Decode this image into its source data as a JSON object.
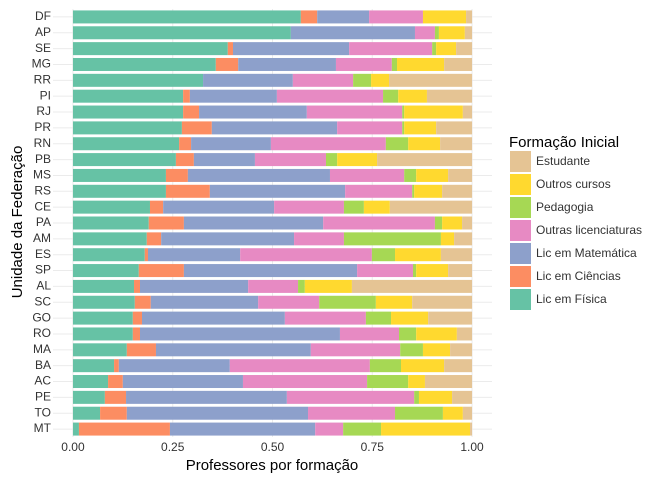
{
  "chart_data": {
    "type": "stacked-bar-horizontal",
    "x_label": "Professores por formação",
    "y_label": "Unidade da Federação",
    "legend_title": "Formação Inicial",
    "legend_position": "right",
    "grid": true,
    "xlim": [
      -0.05,
      1.05
    ],
    "xticks": [
      {
        "value": 0,
        "label": "0.00"
      },
      {
        "value": 0.25,
        "label": "0.25"
      },
      {
        "value": 0.5,
        "label": "0.50"
      },
      {
        "value": 0.75,
        "label": "0.75"
      },
      {
        "value": 1,
        "label": "1.00"
      }
    ],
    "categories": [
      "DF",
      "AP",
      "SE",
      "MG",
      "RR",
      "PI",
      "RJ",
      "PR",
      "RN",
      "PB",
      "MS",
      "RS",
      "CE",
      "PA",
      "AM",
      "ES",
      "SP",
      "AL",
      "SC",
      "GO",
      "RO",
      "MA",
      "BA",
      "AC",
      "PE",
      "TO",
      "MT"
    ],
    "series": [
      {
        "name": "Estudante",
        "color": "#e5c494",
        "values": [
          0.015,
          0.018,
          0.04,
          0.07,
          0.208,
          0.113,
          0.023,
          0.09,
          0.08,
          0.238,
          0.06,
          0.075,
          0.206,
          0.025,
          0.045,
          0.078,
          0.06,
          0.301,
          0.15,
          0.11,
          0.038,
          0.055,
          0.07,
          0.118,
          0.05,
          0.023,
          0.005
        ]
      },
      {
        "name": "Outros cursos",
        "color": "#ffd92f",
        "values": [
          0.108,
          0.065,
          0.05,
          0.118,
          0.045,
          0.072,
          0.147,
          0.08,
          0.08,
          0.1,
          0.08,
          0.07,
          0.065,
          0.05,
          0.033,
          0.115,
          0.08,
          0.118,
          0.091,
          0.093,
          0.102,
          0.068,
          0.108,
          0.042,
          0.083,
          0.05,
          0.223
        ]
      },
      {
        "name": "Pedagogia",
        "color": "#a6d854",
        "values": [
          0.0,
          0.01,
          0.01,
          0.013,
          0.045,
          0.038,
          0.005,
          0.005,
          0.056,
          0.028,
          0.03,
          0.005,
          0.05,
          0.018,
          0.243,
          0.058,
          0.008,
          0.017,
          0.142,
          0.063,
          0.043,
          0.057,
          0.078,
          0.103,
          0.012,
          0.12,
          0.095
        ]
      },
      {
        "name": "Outras licenciaturas",
        "color": "#e78ac3",
        "values": [
          0.135,
          0.05,
          0.208,
          0.14,
          0.151,
          0.266,
          0.239,
          0.163,
          0.288,
          0.178,
          0.186,
          0.168,
          0.175,
          0.28,
          0.125,
          0.33,
          0.14,
          0.125,
          0.153,
          0.203,
          0.148,
          0.224,
          0.351,
          0.311,
          0.319,
          0.218,
          0.07
        ]
      },
      {
        "name": "Lic em Matemática",
        "color": "#8da0cb",
        "values": [
          0.13,
          0.311,
          0.291,
          0.245,
          0.225,
          0.218,
          0.27,
          0.314,
          0.2,
          0.153,
          0.356,
          0.339,
          0.278,
          0.349,
          0.333,
          0.231,
          0.434,
          0.271,
          0.269,
          0.358,
          0.501,
          0.388,
          0.278,
          0.301,
          0.403,
          0.454,
          0.364
        ]
      },
      {
        "name": "Lic em Ciências",
        "color": "#fc8d62",
        "values": [
          0.041,
          0.0,
          0.013,
          0.056,
          0.0,
          0.017,
          0.04,
          0.075,
          0.03,
          0.045,
          0.055,
          0.11,
          0.033,
          0.088,
          0.036,
          0.008,
          0.113,
          0.015,
          0.04,
          0.023,
          0.018,
          0.073,
          0.012,
          0.037,
          0.053,
          0.067,
          0.228
        ]
      },
      {
        "name": "Lic em Física",
        "color": "#66c2a5",
        "values": [
          0.571,
          0.546,
          0.388,
          0.358,
          0.326,
          0.276,
          0.276,
          0.273,
          0.266,
          0.258,
          0.233,
          0.233,
          0.193,
          0.19,
          0.185,
          0.18,
          0.165,
          0.153,
          0.155,
          0.15,
          0.15,
          0.135,
          0.103,
          0.088,
          0.08,
          0.068,
          0.015
        ]
      }
    ]
  }
}
